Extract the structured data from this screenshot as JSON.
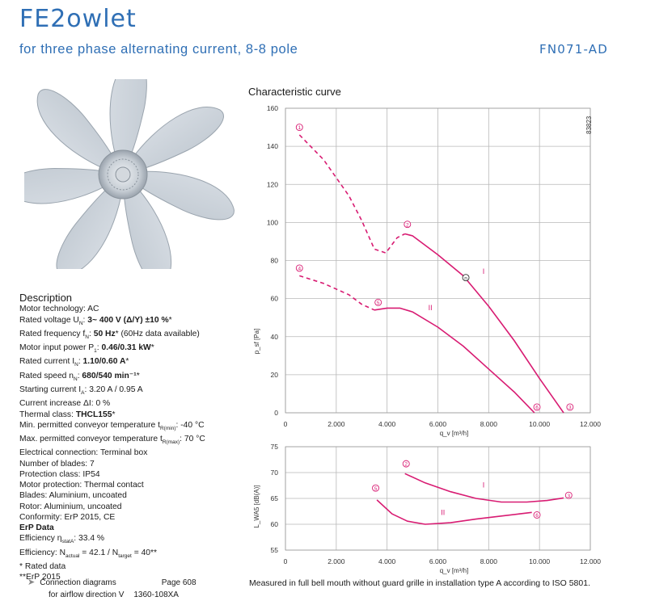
{
  "header": {
    "brand": "FE2owlet",
    "subtitle": "for three phase alternating current, 8-8 pole",
    "model": "FN071-AD"
  },
  "description": {
    "title": "Description",
    "lines": [
      {
        "label": "Motor technology: ",
        "value": "AC",
        "bold": false
      },
      {
        "label": "Rated voltage U",
        "sub": "N",
        "sep": ": ",
        "value": "3~ 400 V (Δ/Y) ±10 %",
        "note": "*",
        "bold": true
      },
      {
        "label": "Rated frequency f",
        "sub": "N",
        "sep": ": ",
        "value": "50 Hz",
        "note": "* (60Hz data available)",
        "bold": true
      },
      {
        "label": "Motor input power P",
        "sub": "1",
        "sep": ": ",
        "value": "0.46/0.31 kW",
        "note": "*",
        "bold": true
      },
      {
        "label": "Rated current I",
        "sub": "N",
        "sep": ": ",
        "value": "1.10/0.60 A",
        "note": "*",
        "bold": true
      },
      {
        "label": "Rated speed n",
        "sub": "N",
        "sep": ": ",
        "value": "680/540 min⁻¹",
        "note": "*",
        "bold": true
      },
      {
        "label": "Starting current I",
        "sub": "A",
        "sep": ": ",
        "value": "3.20 A / 0.95 A",
        "bold": false
      },
      {
        "label": "Current increase ΔI: ",
        "value": "0 %",
        "bold": false
      },
      {
        "label": "Thermal class: ",
        "value": "THCL155",
        "note": "*",
        "bold": true
      },
      {
        "label": "Min. permitted conveyor temperature t",
        "sub": "R(min)",
        "sep": ": ",
        "value": "-40 °C",
        "bold": false
      },
      {
        "label": "Max. permitted conveyor temperature t",
        "sub": "R(max)",
        "sep": ": ",
        "value": "70 °C",
        "bold": false
      },
      {
        "label": "Electrical connection: ",
        "value": "Terminal box",
        "bold": false
      },
      {
        "label": "Number of blades: ",
        "value": "7",
        "bold": false
      },
      {
        "label": "Protection class: ",
        "value": "IP54",
        "bold": false
      },
      {
        "label": "Motor protection: ",
        "value": "Thermal contact",
        "bold": false
      },
      {
        "label": "Blades: ",
        "value": "Aluminium, uncoated",
        "bold": false
      },
      {
        "label": "Rotor: ",
        "value": "Aluminium, uncoated",
        "bold": false
      },
      {
        "label": "Conformity: ",
        "value": "ErP 2015, CE",
        "bold": false
      }
    ],
    "erp_title": "ErP Data",
    "efficiency_label": "Efficiency η",
    "efficiency_sub": "statA",
    "efficiency_value": ": 33.4 %",
    "eff_n_label": "Efficiency: N",
    "eff_n_sub1": "actual",
    "eff_n_mid": " = 42.1 / N",
    "eff_n_sub2": "target",
    "eff_n_value": " = 40**",
    "note1": "* Rated data",
    "note2": "**ErP 2015"
  },
  "connection": {
    "label": "Connection diagrams",
    "page": "Page 608",
    "airflow": "for airflow direction V",
    "code": "1360-108XA"
  },
  "chart_title": "Characteristic curve",
  "footer_note": "Measured in full bell mouth without guard grille in installation type A according to ISO 5801.",
  "colors": {
    "accent": "#2f6fb5",
    "curve": "#d81b72",
    "grid": "#b8b8b8"
  },
  "chart_data": [
    {
      "type": "line",
      "id": "pressure",
      "code": "83823",
      "xlabel": "q_v [m³/h]",
      "ylabel": "p_sf [Pa]",
      "xlim": [
        0,
        12000
      ],
      "ylim": [
        0,
        160
      ],
      "xticks": [
        0,
        2000,
        4000,
        6000,
        8000,
        10000,
        12000
      ],
      "xtick_labels": [
        "0",
        "2.000",
        "4.000",
        "6.000",
        "8.000",
        "10.000",
        "12.000"
      ],
      "yticks": [
        0,
        20,
        40,
        60,
        80,
        100,
        120,
        140,
        160
      ],
      "grid": true,
      "series": [
        {
          "name": "I",
          "style": "dashed",
          "points": [
            [
              550,
              146
            ],
            [
              1500,
              133
            ],
            [
              2500,
              114
            ],
            [
              3000,
              101
            ],
            [
              3500,
              86
            ],
            [
              3950,
              84
            ],
            [
              4400,
              92
            ],
            [
              4700,
              94
            ]
          ]
        },
        {
          "name": "I",
          "style": "solid",
          "points": [
            [
              4700,
              94
            ],
            [
              5000,
              93
            ],
            [
              6000,
              83
            ],
            [
              7000,
              72
            ],
            [
              8000,
              56
            ],
            [
              9000,
              38
            ],
            [
              10000,
              18
            ],
            [
              10950,
              0
            ]
          ]
        },
        {
          "name": "II",
          "style": "dashed",
          "points": [
            [
              550,
              72
            ],
            [
              1500,
              68
            ],
            [
              2500,
              62
            ],
            [
              3000,
              57
            ],
            [
              3500,
              54
            ]
          ]
        },
        {
          "name": "II",
          "style": "solid",
          "points": [
            [
              3500,
              54
            ],
            [
              4000,
              55
            ],
            [
              4500,
              55
            ],
            [
              5000,
              53
            ],
            [
              6000,
              45
            ],
            [
              7000,
              35
            ],
            [
              8000,
              23
            ],
            [
              9000,
              11
            ],
            [
              9800,
              0
            ]
          ]
        }
      ],
      "markers": [
        {
          "label": "1",
          "x": 550,
          "y": 150
        },
        {
          "label": "2",
          "x": 4800,
          "y": 99
        },
        {
          "label": "4",
          "x": 550,
          "y": 76
        },
        {
          "label": "5",
          "x": 3650,
          "y": 58
        },
        {
          "label": "n",
          "x": 7100,
          "y": 71
        },
        {
          "label": "6",
          "x": 9900,
          "y": 3
        },
        {
          "label": "3",
          "x": 11200,
          "y": 3
        }
      ],
      "annotations": [
        {
          "text": "I",
          "x": 7800,
          "y": 73
        },
        {
          "text": "II",
          "x": 5700,
          "y": 54
        }
      ]
    },
    {
      "type": "line",
      "id": "sound",
      "xlabel": "q_v [m³/h]",
      "ylabel": "L_WA5 [dB(A)]",
      "xlim": [
        0,
        12000
      ],
      "ylim": [
        55,
        75
      ],
      "xticks": [
        0,
        2000,
        4000,
        6000,
        8000,
        10000,
        12000
      ],
      "xtick_labels": [
        "0",
        "2.000",
        "4.000",
        "6.000",
        "8.000",
        "10.000",
        "12.000"
      ],
      "yticks": [
        55,
        60,
        65,
        70,
        75
      ],
      "grid": true,
      "series": [
        {
          "name": "I",
          "style": "solid",
          "points": [
            [
              4700,
              69.8
            ],
            [
              5500,
              68.0
            ],
            [
              6500,
              66.3
            ],
            [
              7500,
              65.0
            ],
            [
              8500,
              64.3
            ],
            [
              9500,
              64.3
            ],
            [
              10300,
              64.6
            ],
            [
              10950,
              65.1
            ]
          ]
        },
        {
          "name": "II",
          "style": "solid",
          "points": [
            [
              3600,
              64.7
            ],
            [
              4200,
              62.0
            ],
            [
              4800,
              60.6
            ],
            [
              5500,
              60.0
            ],
            [
              6500,
              60.3
            ],
            [
              7500,
              61.0
            ],
            [
              8500,
              61.6
            ],
            [
              9700,
              62.3
            ]
          ]
        }
      ],
      "markers": [
        {
          "label": "2",
          "x": 4750,
          "y": 71.7
        },
        {
          "label": "5",
          "x": 3550,
          "y": 67.0
        },
        {
          "label": "3",
          "x": 11150,
          "y": 65.6
        },
        {
          "label": "6",
          "x": 9900,
          "y": 61.8
        }
      ],
      "annotations": [
        {
          "text": "I",
          "x": 7800,
          "y": 67.1
        },
        {
          "text": "II",
          "x": 6200,
          "y": 61.8
        }
      ]
    }
  ]
}
